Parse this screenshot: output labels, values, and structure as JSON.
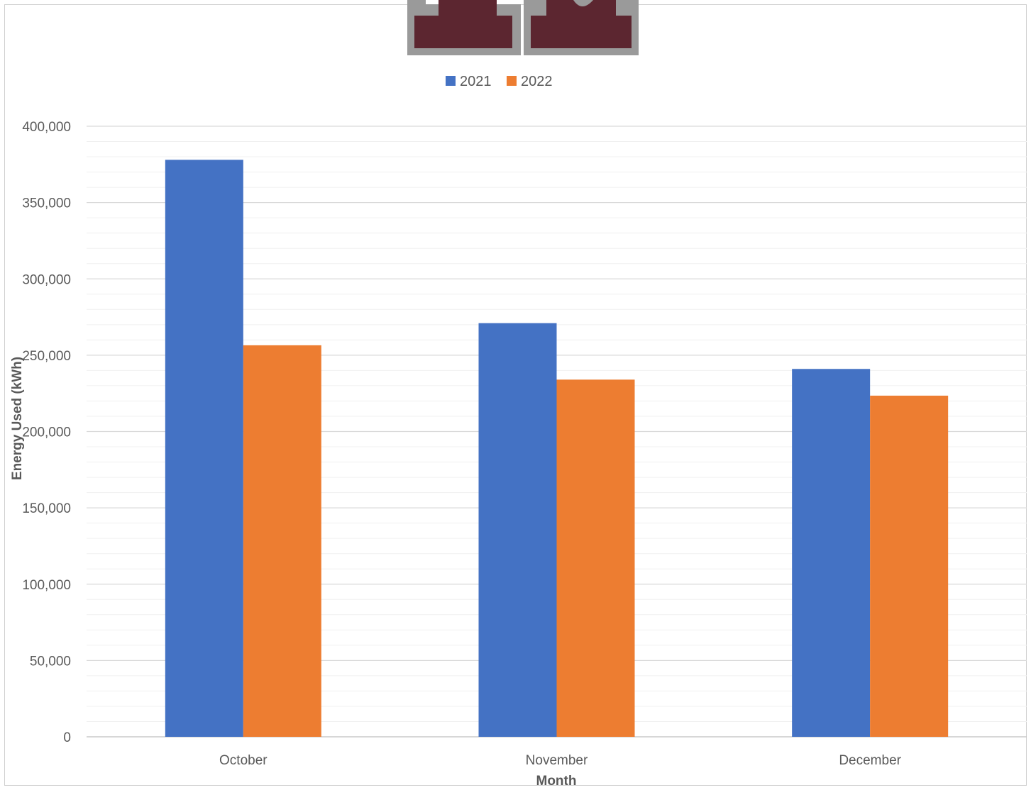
{
  "chart_data": {
    "type": "bar",
    "title": "",
    "xlabel": "Month",
    "ylabel": "Energy Used (kWh)",
    "categories": [
      "October",
      "November",
      "December"
    ],
    "series": [
      {
        "name": "2021",
        "color": "#4472C4",
        "values": [
          378000,
          271000,
          241000
        ]
      },
      {
        "name": "2022",
        "color": "#ED7D31",
        "values": [
          256500,
          234000,
          223500
        ]
      }
    ],
    "ylim": [
      0,
      400000
    ],
    "y_major_step": 50000,
    "y_minor_step": 10000,
    "y_tick_labels": [
      "0",
      "50,000",
      "100,000",
      "150,000",
      "200,000",
      "250,000",
      "300,000",
      "350,000",
      "400,000"
    ],
    "grid": true,
    "legend_position": "top"
  },
  "logo": {
    "description": "maroon block letters with gray outline, partially cropped at top",
    "fill_color": "#5C2630",
    "outline_color": "#9A9A9A"
  }
}
